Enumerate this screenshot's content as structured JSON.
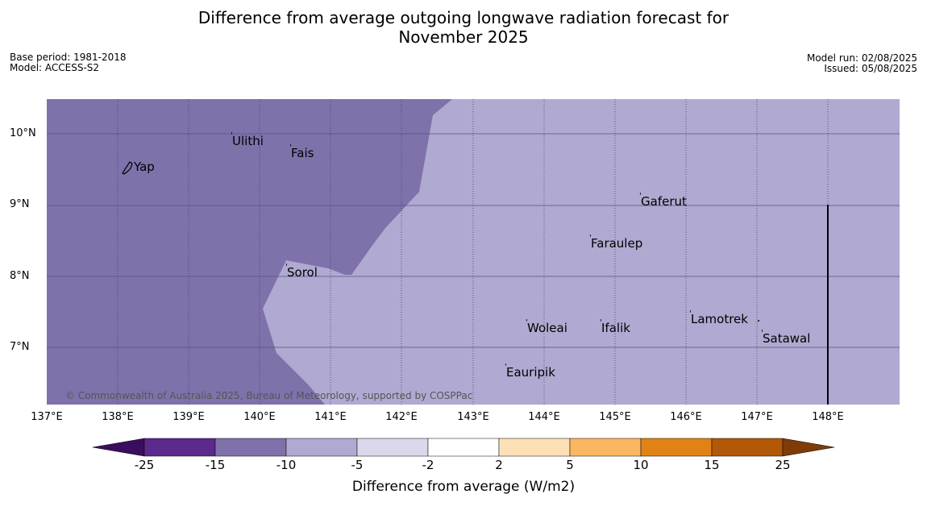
{
  "title_line1": "Difference from average outgoing longwave radiation forecast for",
  "title_line2": "November 2025",
  "base_period": "Base period: 1981-2018",
  "model": "Model: ACCESS-S2",
  "model_run": "Model run: 02/08/2025",
  "issued": "Issued: 05/08/2025",
  "copyright": "© Commonwealth of Australia 2025, Bureau of Meteorology, supported by COSPPac",
  "lat_ticks": [
    "10°N",
    "9°N",
    "8°N",
    "7°N"
  ],
  "lon_ticks": [
    "137°E",
    "138°E",
    "139°E",
    "140°E",
    "141°E",
    "142°E",
    "143°E",
    "144°E",
    "145°E",
    "146°E",
    "147°E",
    "148°E"
  ],
  "places": {
    "yap": "Yap",
    "ulithi": "Ulithi",
    "fais": "Fais",
    "gaferut": "Gaferut",
    "faraulep": "Faraulep",
    "sorol": "Sorol",
    "lamotrek": "Lamotrek",
    "woleai": "Woleai",
    "ifalik": "Ifalik",
    "satawal": "Satawal",
    "eauripik": "Eauripik"
  },
  "colorbar": {
    "title": "Difference from average (W/m2)",
    "labels": [
      "-25",
      "-15",
      "-10",
      "-5",
      "-2",
      "2",
      "5",
      "10",
      "15",
      "25"
    ],
    "colors": [
      "#3a0e5e",
      "#5b2a8c",
      "#7f72ab",
      "#b0a9d1",
      "#d9d9eb",
      "#ffffff",
      "#fee0b6",
      "#fbb661",
      "#e08214",
      "#b35806",
      "#7f3b08"
    ]
  },
  "map_colors": {
    "dark_region": "#7f72ab",
    "light_region": "#b0a9d1"
  }
}
